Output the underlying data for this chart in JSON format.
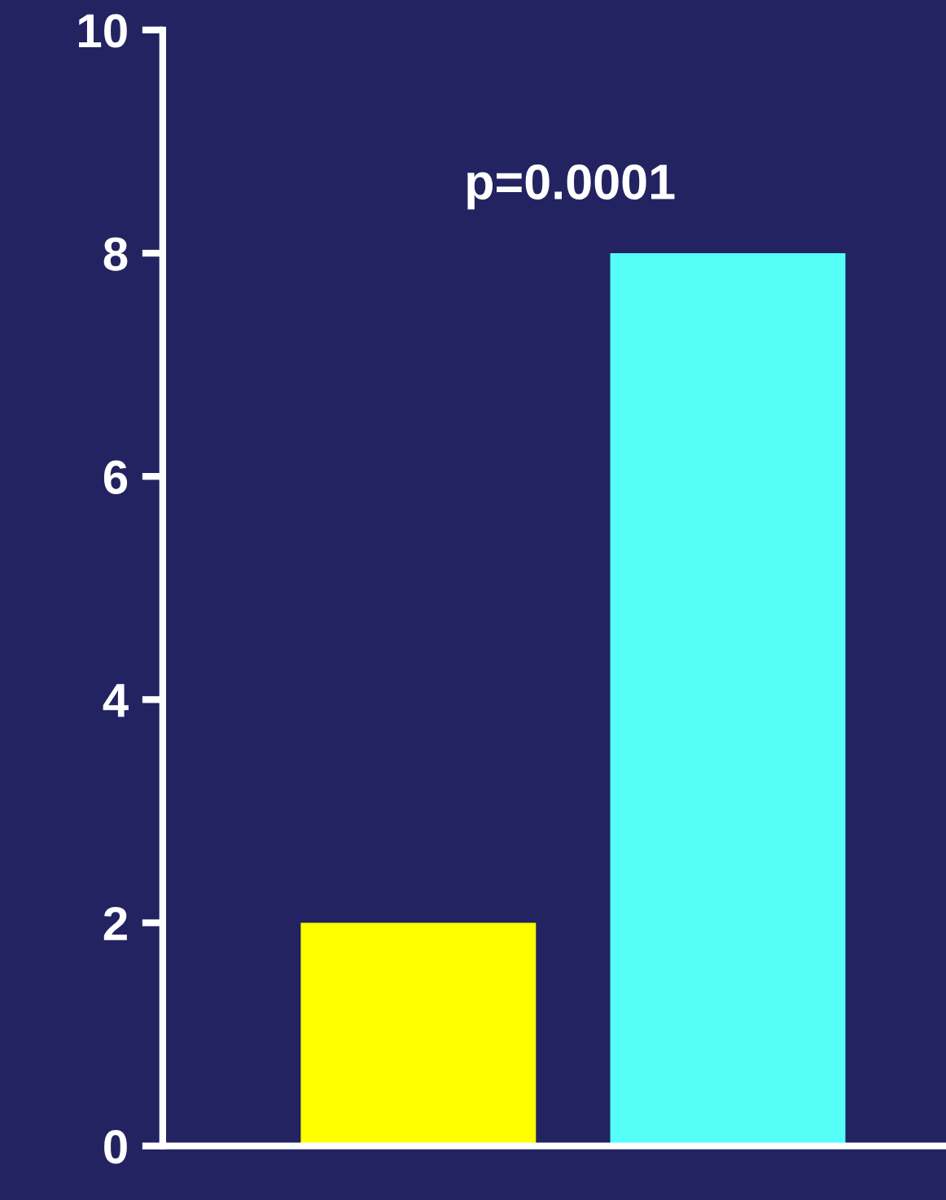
{
  "chart_data": {
    "type": "bar",
    "categories": [
      null,
      null
    ],
    "values": [
      2,
      8
    ],
    "colors": [
      "#ffff00",
      "#55fff8"
    ],
    "ylim": [
      0,
      10
    ],
    "yticks": [
      0,
      2,
      4,
      6,
      8,
      10
    ],
    "grid": false,
    "annotations": [
      "p=0.0001"
    ]
  }
}
